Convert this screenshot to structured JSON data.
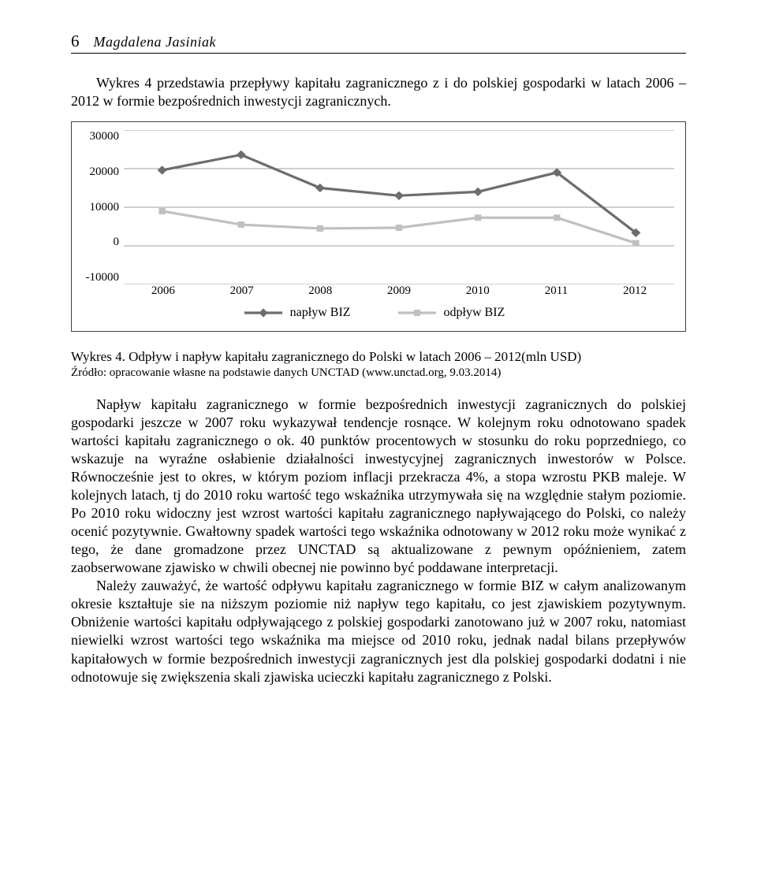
{
  "header": {
    "page_number": "6",
    "author": "Magdalena Jasiniak"
  },
  "intro_paragraph": "Wykres 4 przedstawia przepływy kapitału zagranicznego z i do polskiej gospodarki w latach 2006 – 2012 w formie bezpośrednich inwestycji zagranicznych.",
  "chart": {
    "type": "line",
    "categories": [
      "2006",
      "2007",
      "2008",
      "2009",
      "2010",
      "2011",
      "2012"
    ],
    "ylim": [
      -10000,
      30000
    ],
    "ytick_step": 10000,
    "yticks": [
      "30000",
      "20000",
      "10000",
      "0",
      "-10000"
    ],
    "background_color": "#ffffff",
    "grid_color": "#808080",
    "frame_color": "#404040",
    "line_width": 3.2,
    "marker_size": 8,
    "series_inflow": {
      "label": "napływ BIZ",
      "color": "#6d6d6d",
      "marker": "diamond",
      "values": [
        19600,
        23600,
        15000,
        13000,
        14000,
        19000,
        3400
      ]
    },
    "series_outflow": {
      "label": "odpływ BIZ",
      "color": "#c0c0c0",
      "marker": "square",
      "values": [
        9000,
        5500,
        4500,
        4700,
        7300,
        7300,
        700
      ]
    },
    "axis_fontsize": 15,
    "legend_fontsize": 16
  },
  "caption": {
    "title": "Wykres 4. Odpływ i napływ kapitału zagranicznego do Polski w latach 2006 – 2012(mln USD)",
    "source": "Źródło: opracowanie własne na podstawie danych UNCTAD (www.unctad.org, 9.03.2014)"
  },
  "body_para_1": "Napływ kapitału zagranicznego w formie bezpośrednich inwestycji zagranicznych do polskiej gospodarki jeszcze w 2007 roku wykazywał tendencje rosnące. W kolejnym roku odnotowano spadek wartości kapitału zagranicznego o ok. 40 punktów procentowych w stosunku do roku poprzedniego, co wskazuje na wyraźne osłabienie działalności inwestycyjnej zagranicznych inwestorów w Polsce. Równocześnie jest to okres, w którym poziom inflacji przekracza 4%, a stopa wzrostu PKB maleje. W kolejnych latach, tj do 2010 roku wartość tego wskaźnika utrzymywała się na względnie stałym poziomie. Po 2010 roku widoczny jest wzrost wartości kapitału zagranicznego napływającego do Polski, co należy ocenić pozytywnie. Gwałtowny spadek wartości tego wskaźnika odnotowany w 2012 roku może wynikać z tego, że dane gromadzone przez UNCTAD są aktualizowane z pewnym opóźnieniem, zatem zaobserwowane zjawisko w chwili obecnej nie powinno być poddawane interpretacji.",
  "body_para_2": "Należy zauważyć, że wartość odpływu kapitału zagranicznego w formie BIZ w całym analizowanym okresie kształtuje sie na niższym poziomie niż napływ tego kapitału, co jest zjawiskiem pozytywnym. Obniżenie wartości kapitału odpływającego z polskiej gospodarki zanotowano już w 2007 roku, natomiast niewielki wzrost wartości tego wskaźnika ma miejsce od 2010 roku, jednak nadal bilans przepływów kapitałowych w formie bezpośrednich inwestycji zagranicznych jest dla polskiej gospodarki dodatni i nie odnotowuje się zwiększenia skali zjawiska ucieczki kapitału zagranicznego z Polski."
}
